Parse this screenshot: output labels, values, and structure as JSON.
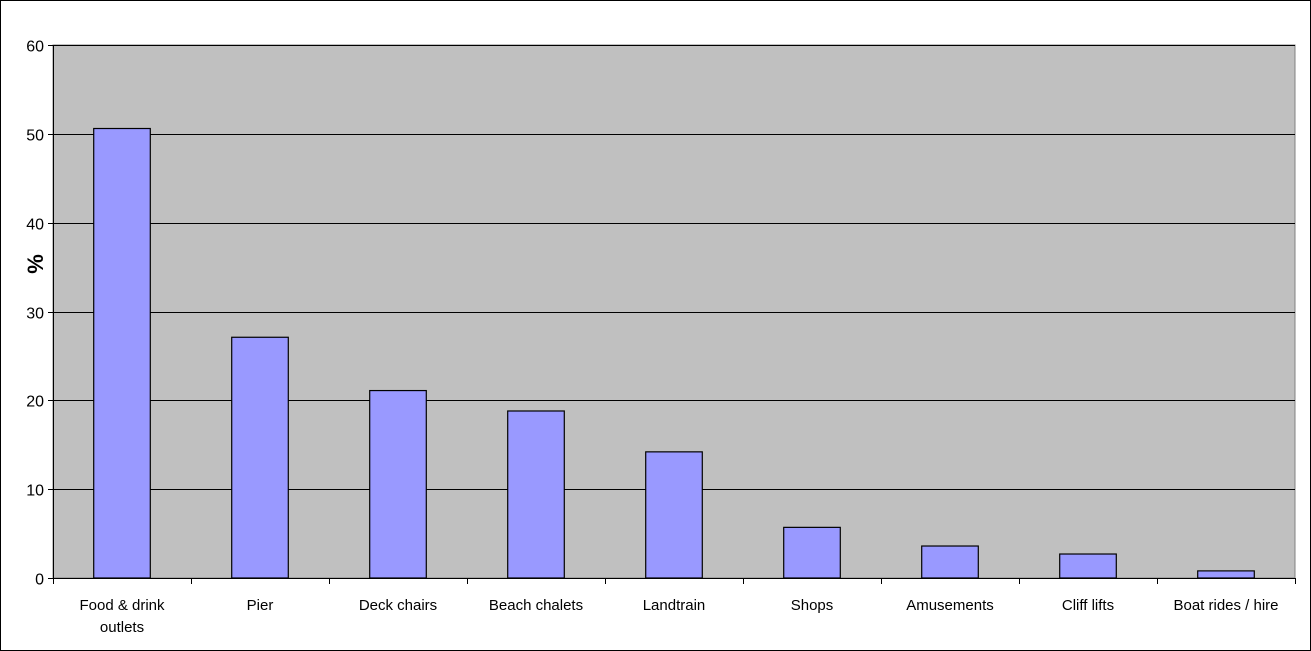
{
  "chart_data": {
    "type": "bar",
    "title": "",
    "xlabel": "",
    "ylabel": "%",
    "ylim": [
      0,
      60
    ],
    "yticks": [
      0,
      10,
      20,
      30,
      40,
      50,
      60
    ],
    "grid": true,
    "categories": [
      [
        "Food & drink",
        "outlets"
      ],
      [
        "Pier"
      ],
      [
        "Deck chairs"
      ],
      [
        "Beach chalets"
      ],
      [
        "Landtrain"
      ],
      [
        "Shops"
      ],
      [
        "Amusements"
      ],
      [
        "Cliff lifts"
      ],
      [
        "Boat rides / hire"
      ]
    ],
    "values": [
      50.6,
      27.1,
      21.1,
      18.8,
      14.2,
      5.7,
      3.6,
      2.7,
      0.8
    ]
  },
  "colors": {
    "plot_background": "#C0C0C0",
    "bar_fill": "#9999FF",
    "bar_stroke": "#000000",
    "gridline": "#000000"
  }
}
